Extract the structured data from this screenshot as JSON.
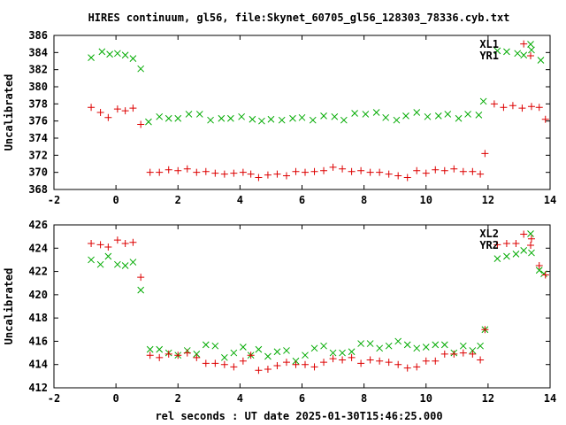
{
  "chart_data": [
    {
      "type": "scatter",
      "title": "HIRES continuum, gl56, file:Skynet_60705_gl56_128303_78336.cyb.txt",
      "xlabel": "",
      "ylabel": "Uncalibrated",
      "xlim": [
        -2,
        14
      ],
      "ylim": [
        368,
        386
      ],
      "xticks": [
        "-2",
        "0",
        "2",
        "4",
        "6",
        "8",
        "10",
        "12",
        "14"
      ],
      "yticks": [
        "368",
        "370",
        "372",
        "374",
        "376",
        "378",
        "380",
        "382",
        "384",
        "386"
      ],
      "legend_position": "top-right",
      "grid": false,
      "series": [
        {
          "name": "XL1",
          "marker": "x",
          "color": "#00aa00",
          "points": [
            [
              -0.8,
              383.4
            ],
            [
              -0.45,
              384.1
            ],
            [
              -0.2,
              383.8
            ],
            [
              0.05,
              383.9
            ],
            [
              0.3,
              383.7
            ],
            [
              0.55,
              383.3
            ],
            [
              0.8,
              382.1
            ],
            [
              1.05,
              375.9
            ],
            [
              1.4,
              376.5
            ],
            [
              1.7,
              376.3
            ],
            [
              2.0,
              376.3
            ],
            [
              2.35,
              376.8
            ],
            [
              2.7,
              376.8
            ],
            [
              3.05,
              376.1
            ],
            [
              3.4,
              376.3
            ],
            [
              3.7,
              376.3
            ],
            [
              4.05,
              376.5
            ],
            [
              4.4,
              376.2
            ],
            [
              4.7,
              376.0
            ],
            [
              5.0,
              376.2
            ],
            [
              5.35,
              376.1
            ],
            [
              5.7,
              376.3
            ],
            [
              6.0,
              376.4
            ],
            [
              6.35,
              376.1
            ],
            [
              6.7,
              376.6
            ],
            [
              7.05,
              376.5
            ],
            [
              7.35,
              376.1
            ],
            [
              7.7,
              376.9
            ],
            [
              8.05,
              376.8
            ],
            [
              8.4,
              377.0
            ],
            [
              8.7,
              376.4
            ],
            [
              9.05,
              376.1
            ],
            [
              9.35,
              376.6
            ],
            [
              9.7,
              377.0
            ],
            [
              10.05,
              376.5
            ],
            [
              10.4,
              376.6
            ],
            [
              10.7,
              376.8
            ],
            [
              11.05,
              376.3
            ],
            [
              11.35,
              376.8
            ],
            [
              11.7,
              376.7
            ],
            [
              11.85,
              378.3
            ],
            [
              12.3,
              384.2
            ],
            [
              12.6,
              384.1
            ],
            [
              12.95,
              383.9
            ],
            [
              13.15,
              383.7
            ],
            [
              13.4,
              384.3
            ],
            [
              13.7,
              383.1
            ]
          ]
        },
        {
          "name": "YR1",
          "marker": "+",
          "color": "#dd0000",
          "points": [
            [
              -0.8,
              377.6
            ],
            [
              -0.5,
              377.0
            ],
            [
              -0.25,
              376.4
            ],
            [
              0.05,
              377.4
            ],
            [
              0.3,
              377.2
            ],
            [
              0.55,
              377.5
            ],
            [
              0.8,
              375.6
            ],
            [
              1.1,
              370.0
            ],
            [
              1.4,
              370.0
            ],
            [
              1.7,
              370.3
            ],
            [
              2.0,
              370.2
            ],
            [
              2.3,
              370.4
            ],
            [
              2.6,
              370.0
            ],
            [
              2.9,
              370.1
            ],
            [
              3.2,
              369.9
            ],
            [
              3.5,
              369.8
            ],
            [
              3.8,
              369.9
            ],
            [
              4.1,
              370.0
            ],
            [
              4.35,
              369.8
            ],
            [
              4.6,
              369.4
            ],
            [
              4.9,
              369.7
            ],
            [
              5.2,
              369.8
            ],
            [
              5.5,
              369.6
            ],
            [
              5.8,
              370.1
            ],
            [
              6.1,
              370.0
            ],
            [
              6.4,
              370.1
            ],
            [
              6.7,
              370.2
            ],
            [
              7.0,
              370.6
            ],
            [
              7.3,
              370.4
            ],
            [
              7.6,
              370.1
            ],
            [
              7.9,
              370.2
            ],
            [
              8.2,
              370.0
            ],
            [
              8.5,
              370.0
            ],
            [
              8.8,
              369.8
            ],
            [
              9.1,
              369.6
            ],
            [
              9.4,
              369.4
            ],
            [
              9.7,
              370.2
            ],
            [
              10.0,
              369.9
            ],
            [
              10.3,
              370.3
            ],
            [
              10.6,
              370.2
            ],
            [
              10.9,
              370.4
            ],
            [
              11.2,
              370.1
            ],
            [
              11.5,
              370.1
            ],
            [
              11.75,
              369.8
            ],
            [
              11.9,
              372.2
            ],
            [
              12.2,
              378.0
            ],
            [
              12.5,
              377.6
            ],
            [
              12.8,
              377.8
            ],
            [
              13.1,
              377.5
            ],
            [
              13.15,
              385.0
            ],
            [
              13.4,
              377.7
            ],
            [
              13.65,
              377.6
            ],
            [
              13.85,
              376.2
            ]
          ]
        }
      ]
    },
    {
      "type": "scatter",
      "title": "",
      "xlabel": "rel seconds : UT date 2025-01-30T15:46:25.000",
      "ylabel": "Uncalibrated",
      "xlim": [
        -2,
        14
      ],
      "ylim": [
        412,
        426
      ],
      "xticks": [
        "-2",
        "0",
        "2",
        "4",
        "6",
        "8",
        "10",
        "12",
        "14"
      ],
      "yticks": [
        "412",
        "414",
        "416",
        "418",
        "420",
        "422",
        "424",
        "426"
      ],
      "legend_position": "top-right",
      "grid": false,
      "series": [
        {
          "name": "XL2",
          "marker": "x",
          "color": "#00aa00",
          "points": [
            [
              -0.8,
              423.0
            ],
            [
              -0.5,
              422.6
            ],
            [
              -0.25,
              423.3
            ],
            [
              0.05,
              422.6
            ],
            [
              0.3,
              422.5
            ],
            [
              0.55,
              422.8
            ],
            [
              0.8,
              420.4
            ],
            [
              1.1,
              415.3
            ],
            [
              1.4,
              415.3
            ],
            [
              1.7,
              415.0
            ],
            [
              2.0,
              414.8
            ],
            [
              2.3,
              415.2
            ],
            [
              2.6,
              414.9
            ],
            [
              2.9,
              415.7
            ],
            [
              3.2,
              415.6
            ],
            [
              3.5,
              414.6
            ],
            [
              3.8,
              415.0
            ],
            [
              4.1,
              415.5
            ],
            [
              4.35,
              414.8
            ],
            [
              4.6,
              415.3
            ],
            [
              4.9,
              414.7
            ],
            [
              5.2,
              415.1
            ],
            [
              5.5,
              415.2
            ],
            [
              5.8,
              414.3
            ],
            [
              6.1,
              414.8
            ],
            [
              6.4,
              415.4
            ],
            [
              6.7,
              415.6
            ],
            [
              7.0,
              415.0
            ],
            [
              7.3,
              415.0
            ],
            [
              7.6,
              415.1
            ],
            [
              7.9,
              415.8
            ],
            [
              8.2,
              415.8
            ],
            [
              8.5,
              415.4
            ],
            [
              8.8,
              415.6
            ],
            [
              9.1,
              416.0
            ],
            [
              9.4,
              415.7
            ],
            [
              9.7,
              415.4
            ],
            [
              10.0,
              415.5
            ],
            [
              10.3,
              415.7
            ],
            [
              10.6,
              415.7
            ],
            [
              10.9,
              415.0
            ],
            [
              11.2,
              415.6
            ],
            [
              11.5,
              415.2
            ],
            [
              11.75,
              415.6
            ],
            [
              11.9,
              417.0
            ],
            [
              12.3,
              423.1
            ],
            [
              12.6,
              423.3
            ],
            [
              12.9,
              423.5
            ],
            [
              13.15,
              423.8
            ],
            [
              13.4,
              423.6
            ],
            [
              13.65,
              422.1
            ],
            [
              13.8,
              421.8
            ]
          ]
        },
        {
          "name": "YR2",
          "marker": "+",
          "color": "#dd0000",
          "points": [
            [
              -0.8,
              424.4
            ],
            [
              -0.5,
              424.3
            ],
            [
              -0.25,
              424.1
            ],
            [
              0.05,
              424.7
            ],
            [
              0.3,
              424.4
            ],
            [
              0.55,
              424.5
            ],
            [
              0.8,
              421.5
            ],
            [
              1.1,
              414.8
            ],
            [
              1.4,
              414.6
            ],
            [
              1.7,
              414.9
            ],
            [
              2.0,
              414.8
            ],
            [
              2.3,
              415.0
            ],
            [
              2.6,
              414.6
            ],
            [
              2.9,
              414.1
            ],
            [
              3.2,
              414.1
            ],
            [
              3.5,
              414.0
            ],
            [
              3.8,
              413.8
            ],
            [
              4.1,
              414.3
            ],
            [
              4.35,
              414.8
            ],
            [
              4.6,
              413.5
            ],
            [
              4.9,
              413.6
            ],
            [
              5.2,
              413.9
            ],
            [
              5.5,
              414.2
            ],
            [
              5.8,
              414.0
            ],
            [
              6.1,
              414.0
            ],
            [
              6.4,
              413.8
            ],
            [
              6.7,
              414.2
            ],
            [
              7.0,
              414.5
            ],
            [
              7.3,
              414.4
            ],
            [
              7.6,
              414.6
            ],
            [
              7.9,
              414.1
            ],
            [
              8.2,
              414.4
            ],
            [
              8.5,
              414.3
            ],
            [
              8.8,
              414.2
            ],
            [
              9.1,
              414.0
            ],
            [
              9.4,
              413.7
            ],
            [
              9.7,
              413.8
            ],
            [
              10.0,
              414.3
            ],
            [
              10.3,
              414.3
            ],
            [
              10.6,
              414.9
            ],
            [
              10.9,
              414.9
            ],
            [
              11.2,
              415.0
            ],
            [
              11.5,
              414.9
            ],
            [
              11.75,
              414.4
            ],
            [
              11.9,
              417.0
            ],
            [
              12.3,
              424.3
            ],
            [
              12.6,
              424.4
            ],
            [
              12.9,
              424.4
            ],
            [
              13.15,
              425.2
            ],
            [
              13.4,
              424.8
            ],
            [
              13.65,
              422.5
            ],
            [
              13.85,
              421.7
            ]
          ]
        }
      ]
    }
  ]
}
